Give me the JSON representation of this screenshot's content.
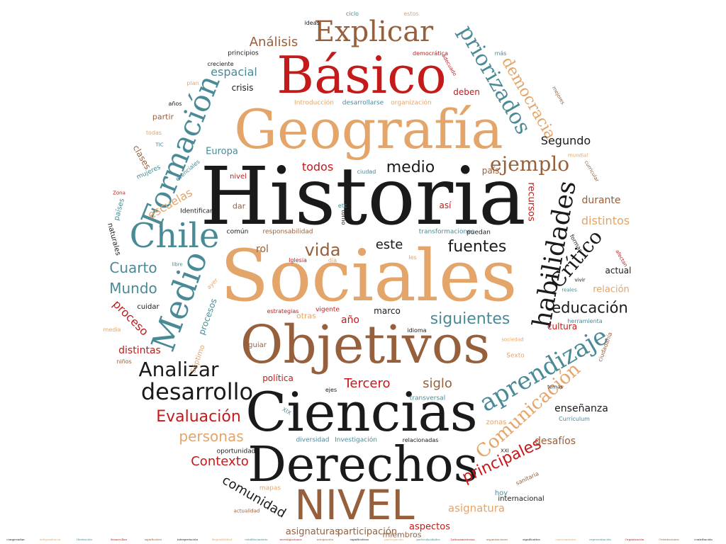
{
  "colors": {
    "red": "#c41a1a",
    "tan": "#e3a56a",
    "brown": "#97603c",
    "teal": "#4a8a96",
    "black": "#1a1a1a"
  },
  "words": [
    {
      "id": "historia",
      "text": "Historia",
      "c": "black"
    },
    {
      "id": "sociales",
      "text": "Sociales",
      "c": "tan"
    },
    {
      "id": "geografia",
      "text": "Geografía",
      "c": "tan"
    },
    {
      "id": "basico",
      "text": "Básico",
      "c": "red"
    },
    {
      "id": "objetivos",
      "text": "Objetivos",
      "c": "brown"
    },
    {
      "id": "ciencias",
      "text": "Ciencias",
      "c": "black"
    },
    {
      "id": "derechos",
      "text": "Derechos",
      "c": "black"
    },
    {
      "id": "nivel-upper",
      "text": "NIVEL",
      "c": "brown"
    },
    {
      "id": "explicar",
      "text": "Explicar",
      "c": "brown"
    },
    {
      "id": "chile",
      "text": "Chile",
      "c": "teal"
    },
    {
      "id": "medio-big",
      "text": "Medio",
      "c": "teal"
    },
    {
      "id": "formacion",
      "text": "Formación",
      "c": "teal"
    },
    {
      "id": "habilidades",
      "text": "habilidades",
      "c": "black"
    },
    {
      "id": "aprendizaje",
      "text": "aprendizaje",
      "c": "teal"
    },
    {
      "id": "priorizados",
      "text": "priorizados",
      "c": "teal"
    },
    {
      "id": "critico",
      "text": "Crítico",
      "c": "black"
    },
    {
      "id": "comunicacion",
      "text": "Comunicación",
      "c": "tan"
    },
    {
      "id": "ejemplo",
      "text": "ejemplo",
      "c": "brown"
    },
    {
      "id": "democracia",
      "text": "democracia",
      "c": "tan"
    },
    {
      "id": "analizar",
      "text": "Analizar",
      "c": "black"
    },
    {
      "id": "desarrollo",
      "text": "desarrollo",
      "c": "black"
    },
    {
      "id": "evaluacion",
      "text": "Evaluación",
      "c": "red"
    },
    {
      "id": "principales",
      "text": "principales",
      "c": "red"
    },
    {
      "id": "vida",
      "text": "vida",
      "c": "brown"
    },
    {
      "id": "fuentes",
      "text": "fuentes",
      "c": "black"
    },
    {
      "id": "siguientes",
      "text": "siguientes",
      "c": "teal"
    },
    {
      "id": "medio-small",
      "text": "medio",
      "c": "black"
    },
    {
      "id": "educacion",
      "text": "educación",
      "c": "black"
    },
    {
      "id": "cuarto",
      "text": "Cuarto",
      "c": "teal"
    },
    {
      "id": "mundo",
      "text": "Mundo",
      "c": "teal"
    },
    {
      "id": "personas",
      "text": "personas",
      "c": "tan"
    },
    {
      "id": "contexto",
      "text": "Contexto",
      "c": "red"
    },
    {
      "id": "comunidad",
      "text": "comunidad",
      "c": "black"
    },
    {
      "id": "analisis",
      "text": "Análisis",
      "c": "brown"
    },
    {
      "id": "espacial",
      "text": "espacial",
      "c": "teal"
    },
    {
      "id": "segundo",
      "text": "Segundo",
      "c": "black"
    },
    {
      "id": "todos",
      "text": "todos",
      "c": "red"
    },
    {
      "id": "este",
      "text": "este",
      "c": "black"
    },
    {
      "id": "siglo",
      "text": "siglo",
      "c": "brown"
    },
    {
      "id": "tercero",
      "text": "Tercero",
      "c": "red"
    },
    {
      "id": "distintos",
      "text": "distintos",
      "c": "tan"
    },
    {
      "id": "distintas",
      "text": "distintas",
      "c": "red"
    },
    {
      "id": "proceso",
      "text": "proceso",
      "c": "red"
    },
    {
      "id": "escuelas",
      "text": "escuelas",
      "c": "tan"
    },
    {
      "id": "asignatura",
      "text": "asignatura",
      "c": "tan"
    },
    {
      "id": "asignaturas",
      "text": "asignaturas",
      "c": "brown"
    },
    {
      "id": "participacion",
      "text": "participación",
      "c": "brown"
    },
    {
      "id": "aspectos",
      "text": "aspectos",
      "c": "red"
    },
    {
      "id": "desafios",
      "text": "desafíos",
      "c": "brown"
    },
    {
      "id": "enseñanza",
      "text": "enseñanza",
      "c": "black"
    },
    {
      "id": "relacion",
      "text": "relación",
      "c": "tan"
    },
    {
      "id": "durante",
      "text": "durante",
      "c": "brown"
    },
    {
      "id": "recursos",
      "text": "recursos",
      "c": "red"
    },
    {
      "id": "europa",
      "text": "Europa",
      "c": "teal"
    },
    {
      "id": "crisis",
      "text": "crisis",
      "c": "black"
    },
    {
      "id": "politica",
      "text": "política",
      "c": "red"
    },
    {
      "id": "cultura",
      "text": "cultura",
      "c": "red"
    },
    {
      "id": "actual",
      "text": "actual",
      "c": "black"
    },
    {
      "id": "rol",
      "text": "rol",
      "c": "brown"
    },
    {
      "id": "ano",
      "text": "año",
      "c": "red"
    },
    {
      "id": "marco",
      "text": "marco",
      "c": "black"
    },
    {
      "id": "deben",
      "text": "deben",
      "c": "red"
    },
    {
      "id": "pais",
      "text": "país",
      "c": "brown"
    },
    {
      "id": "asi",
      "text": "así",
      "c": "red"
    },
    {
      "id": "dar",
      "text": "dar",
      "c": "brown"
    },
    {
      "id": "procesos",
      "text": "procesos",
      "c": "teal"
    },
    {
      "id": "clases",
      "text": "clases",
      "c": "brown"
    },
    {
      "id": "cuidar",
      "text": "cuidar",
      "c": "black"
    },
    {
      "id": "partir",
      "text": "partir",
      "c": "brown"
    },
    {
      "id": "naturales",
      "text": "naturales",
      "c": "black"
    },
    {
      "id": "paises",
      "text": "países",
      "c": "teal"
    },
    {
      "id": "mujeres",
      "text": "mujeres",
      "c": "teal"
    },
    {
      "id": "nivel-lower",
      "text": "nivel",
      "c": "red"
    },
    {
      "id": "identificar",
      "text": "Identificar",
      "c": "black"
    },
    {
      "id": "comun",
      "text": "común",
      "c": "black"
    },
    {
      "id": "responsabilidad",
      "text": "responsabilidad",
      "c": "brown"
    },
    {
      "id": "transformaciones",
      "text": "transformaciones",
      "c": "teal"
    },
    {
      "id": "puedan",
      "text": "puedan",
      "c": "black"
    },
    {
      "id": "guiar",
      "text": "guiar",
      "c": "brown"
    },
    {
      "id": "otras",
      "text": "otras",
      "c": "tan"
    },
    {
      "id": "vigente",
      "text": "vigente",
      "c": "red"
    },
    {
      "id": "estrategias",
      "text": "estrategias",
      "c": "red"
    },
    {
      "id": "idioma",
      "text": "idioma",
      "c": "black"
    },
    {
      "id": "herramienta",
      "text": "herramienta",
      "c": "teal"
    },
    {
      "id": "sexto",
      "text": "Sexto",
      "c": "tan"
    },
    {
      "id": "septimo",
      "text": "Séptimo",
      "c": "tan"
    },
    {
      "id": "transversal",
      "text": "transversal",
      "c": "teal"
    },
    {
      "id": "ejes",
      "text": "ejes",
      "c": "black"
    },
    {
      "id": "diversidad",
      "text": "diversidad",
      "c": "teal"
    },
    {
      "id": "investigacion",
      "text": "Investigación",
      "c": "teal"
    },
    {
      "id": "relacionadas",
      "text": "relacionadas",
      "c": "black"
    },
    {
      "id": "zonas",
      "text": "zonas",
      "c": "tan"
    },
    {
      "id": "curriculum",
      "text": "Currículum",
      "c": "teal"
    },
    {
      "id": "oportunidad",
      "text": "oportunidad",
      "c": "black"
    },
    {
      "id": "mapas",
      "text": "mapas",
      "c": "tan"
    },
    {
      "id": "hoy",
      "text": "hoy",
      "c": "teal"
    },
    {
      "id": "internacional",
      "text": "internacional",
      "c": "black"
    },
    {
      "id": "miembros",
      "text": "miembros",
      "c": "brown"
    },
    {
      "id": "actualidad",
      "text": "actualidad",
      "c": "brown"
    },
    {
      "id": "ciudadania",
      "text": "ciudadanía",
      "c": "brown"
    },
    {
      "id": "introduccion",
      "text": "Introducción",
      "c": "tan"
    },
    {
      "id": "desarrollarse",
      "text": "desarrollarse",
      "c": "teal"
    },
    {
      "id": "organizacion",
      "text": "organización",
      "c": "tan"
    },
    {
      "id": "principios",
      "text": "principios",
      "c": "black"
    },
    {
      "id": "creciente",
      "text": "creciente",
      "c": "black"
    },
    {
      "id": "plan",
      "text": "plan",
      "c": "tan"
    },
    {
      "id": "ideas",
      "text": "ideas",
      "c": "black"
    },
    {
      "id": "ciclo",
      "text": "ciclo",
      "c": "teal"
    },
    {
      "id": "estos",
      "text": "estos",
      "c": "tan"
    },
    {
      "id": "democratica",
      "text": "democrática",
      "c": "red"
    },
    {
      "id": "mas",
      "text": "más",
      "c": "teal"
    },
    {
      "id": "anos",
      "text": "años",
      "c": "black"
    },
    {
      "id": "todas",
      "text": "todas",
      "c": "tan"
    },
    {
      "id": "esenciales",
      "text": "esenciales",
      "c": "teal"
    },
    {
      "id": "ciudad",
      "text": "ciudad",
      "c": "teal"
    },
    {
      "id": "etc",
      "text": "etc",
      "c": "teal"
    },
    {
      "id": "iglesia",
      "text": "Iglesia",
      "c": "red"
    },
    {
      "id": "dia",
      "text": "día",
      "c": "tan"
    },
    {
      "id": "formas",
      "text": "formas",
      "c": "black"
    },
    {
      "id": "reales",
      "text": "reales",
      "c": "teal"
    },
    {
      "id": "media",
      "text": "media",
      "c": "tan"
    },
    {
      "id": "ninos",
      "text": "niños",
      "c": "brown"
    },
    {
      "id": "xix",
      "text": "XIX",
      "c": "teal"
    },
    {
      "id": "xxi",
      "text": "XXI",
      "c": "black"
    },
    {
      "id": "terms",
      "text": "temas",
      "c": "black"
    },
    {
      "id": "sanitaria",
      "text": "sanitaria",
      "c": "brown"
    },
    {
      "id": "libre",
      "text": "libre",
      "c": "teal"
    },
    {
      "id": "ayer",
      "text": "ayer",
      "c": "tan"
    },
    {
      "id": "torno",
      "text": "torno",
      "c": "black"
    },
    {
      "id": "les",
      "text": "les",
      "c": "tan"
    },
    {
      "id": "tic",
      "text": "TIC",
      "c": "teal"
    },
    {
      "id": "zona",
      "text": "Zona",
      "c": "red"
    },
    {
      "id": "mundial",
      "text": "mundial",
      "c": "tan"
    },
    {
      "id": "adecuado",
      "text": "adecuado",
      "c": "red"
    },
    {
      "id": "mejores",
      "text": "mejores",
      "c": "brown"
    },
    {
      "id": "curricular",
      "text": "curricular",
      "c": "brown"
    },
    {
      "id": "sociedad",
      "text": "sociedad",
      "c": "tan"
    },
    {
      "id": "vivir",
      "text": "vivir",
      "c": "black"
    },
    {
      "id": "afectan",
      "text": "afectan",
      "c": "red"
    }
  ],
  "bottom_row": [
    "comprendan",
    "independencia",
    "Ilustración",
    "desarrollan",
    "significativo",
    "interpretación",
    "disponibilidad",
    "establecimiento",
    "investigaciones",
    "integración",
    "significativos",
    "participación",
    "particularidades",
    "Latinoamericana",
    "organizaciones",
    "significativa",
    "conocimientos",
    "representación",
    "Organización",
    "Orientaciones",
    "contribución"
  ]
}
